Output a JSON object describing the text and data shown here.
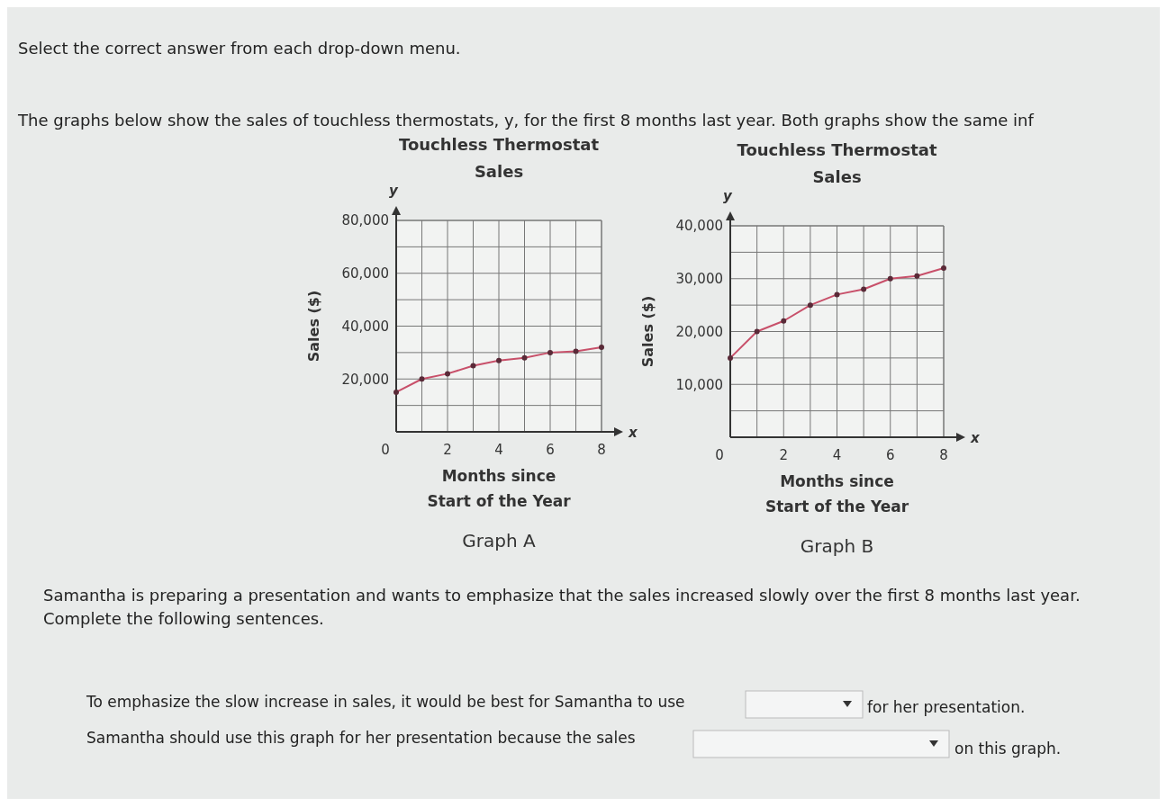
{
  "chart_data": [
    {
      "type": "line",
      "title": "Touchless Thermostat",
      "subtitle": "Sales",
      "xlabel": "Months since\nStart of the Year",
      "ylabel": "Sales ($)",
      "x": [
        0,
        1,
        2,
        3,
        4,
        5,
        6,
        7,
        8
      ],
      "series": [
        {
          "color": "#c8506a",
          "values": [
            15000,
            20000,
            22000,
            25000,
            27000,
            28000,
            30000,
            30500,
            32000
          ]
        }
      ],
      "xlim": [
        0,
        8
      ],
      "xticks": [
        0,
        {
          "value": 1,
          "label": null
        },
        2,
        {
          "value": 3,
          "label": null
        },
        4,
        {
          "value": 5,
          "label": null
        },
        6,
        {
          "value": 7,
          "label": null
        },
        8
      ],
      "ylim": [
        0,
        80000
      ],
      "yticks": [
        {
          "value": 10000,
          "label": null
        },
        {
          "value": 20000,
          "label": "20,000"
        },
        {
          "value": 30000,
          "label": null
        },
        {
          "value": 40000,
          "label": "40,000"
        },
        {
          "value": 50000,
          "label": null
        },
        {
          "value": 60000,
          "label": "60,000"
        },
        {
          "value": 70000,
          "label": null
        },
        {
          "value": 80000,
          "label": "80,000"
        }
      ],
      "grid": true,
      "marker": "circle",
      "line_style": "solid",
      "annotations": [
        "Select the correct answer from each drop-down menu.",
        "The graphs below show the sales of touchless thermostats, y, for the first 8 months last year. Both graphs show the same inf",
        "y",
        "x",
        "Graph A",
        "Samantha is preparing a presentation and wants to emphasize that the sales increased slowly over the first 8 months last year.",
        "Complete the following sentences.",
        "To emphasize the slow increase in sales, it would be best for Samantha to use",
        "for her presentation.",
        "Samantha should use this graph for her presentation because the sales",
        "on this graph."
      ]
    },
    {
      "type": "line",
      "title": "Touchless Thermostat",
      "subtitle": "Sales",
      "xlabel": "Months since\nStart of the Year",
      "ylabel": "Sales ($)",
      "x": [
        0,
        1,
        2,
        3,
        4,
        5,
        6,
        7,
        8
      ],
      "series": [
        {
          "color": "#c8506a",
          "values": [
            15000,
            20000,
            22000,
            25000,
            27000,
            28000,
            30000,
            30500,
            32000
          ]
        }
      ],
      "xlim": [
        0,
        8
      ],
      "xticks": [
        0,
        {
          "value": 1,
          "label": null
        },
        2,
        {
          "value": 3,
          "label": null
        },
        4,
        {
          "value": 5,
          "label": null
        },
        6,
        {
          "value": 7,
          "label": null
        },
        8
      ],
      "ylim": [
        0,
        40000
      ],
      "yticks": [
        {
          "value": 5000,
          "label": null
        },
        {
          "value": 10000,
          "label": "10,000"
        },
        {
          "value": 15000,
          "label": null
        },
        {
          "value": 20000,
          "label": "20,000"
        },
        {
          "value": 25000,
          "label": null
        },
        {
          "value": 30000,
          "label": "30,000"
        },
        {
          "value": 35000,
          "label": null
        },
        {
          "value": 40000,
          "label": "40,000"
        }
      ],
      "grid": true,
      "marker": "circle",
      "line_style": "solid",
      "annotations": [
        "y",
        "x",
        "Graph B"
      ]
    }
  ]
}
